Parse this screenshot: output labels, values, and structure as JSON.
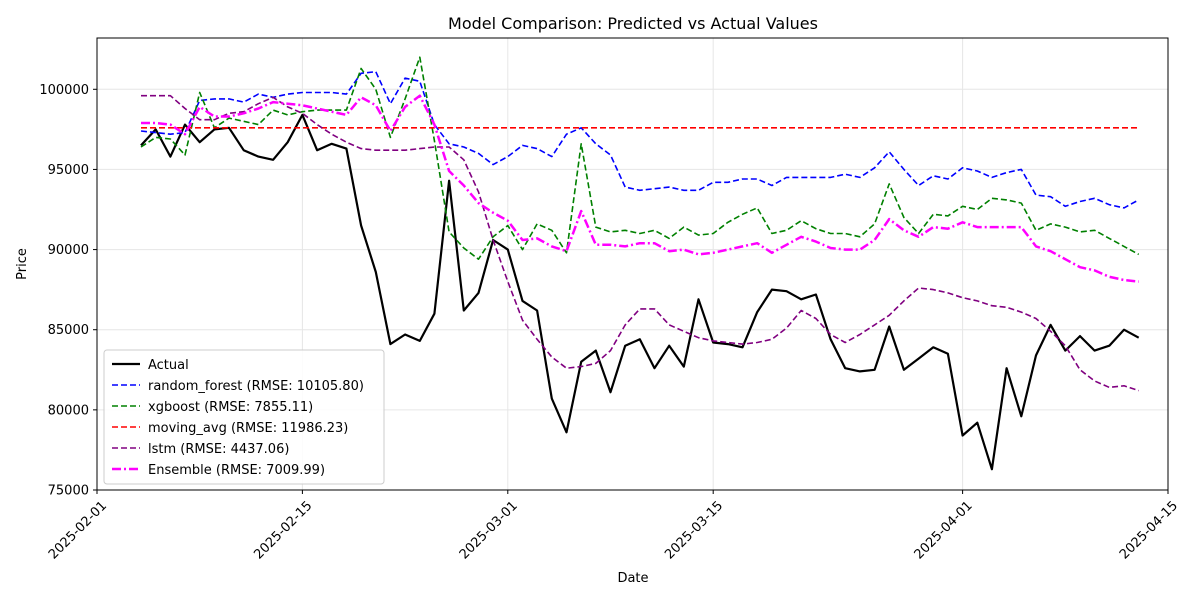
{
  "chart_data": {
    "type": "line",
    "title": "Model Comparison: Predicted vs Actual Values",
    "xlabel": "Date",
    "ylabel": "Price",
    "x_start": "2025-02-04",
    "x_step_days": 1,
    "xlim": [
      "2025-02-01",
      "2025-04-15"
    ],
    "ylim": [
      75000,
      103200
    ],
    "xticks": [
      "2025-02-01",
      "2025-02-15",
      "2025-03-01",
      "2025-03-15",
      "2025-04-01",
      "2025-04-15"
    ],
    "yticks": [
      75000,
      80000,
      85000,
      90000,
      95000,
      100000
    ],
    "grid": true,
    "legend_position": "lower-left",
    "series": [
      {
        "name": "Actual",
        "color": "#000000",
        "style": "solid",
        "values": [
          96500,
          97500,
          95800,
          97800,
          96700,
          97500,
          97600,
          96200,
          95800,
          95600,
          96700,
          98400,
          96200,
          96600,
          96300,
          91500,
          88600,
          84100,
          84700,
          84300,
          86000,
          94300,
          86200,
          87300,
          90600,
          90000,
          86800,
          86200,
          80700,
          78600,
          83000,
          83700,
          81100,
          84000,
          84400,
          82600,
          84000,
          82700,
          86900,
          84200,
          84100,
          83900,
          86100,
          87500,
          87400,
          86900,
          87200,
          84400,
          82600,
          82400,
          82500,
          85200,
          82500,
          83200,
          83900,
          83500,
          78400,
          79200,
          76300,
          82600,
          79600,
          83400,
          85300,
          83700,
          84600,
          83700,
          84000,
          85000,
          84500
        ]
      },
      {
        "name": "random_forest (RMSE: 10105.80)",
        "color": "#0000ff",
        "style": "dashed",
        "values": [
          97400,
          97300,
          97200,
          97300,
          99300,
          99400,
          99400,
          99200,
          99700,
          99500,
          99700,
          99800,
          99800,
          99800,
          99700,
          101000,
          101100,
          99100,
          100700,
          100500,
          97800,
          96600,
          96400,
          96000,
          95300,
          95800,
          96500,
          96300,
          95800,
          97200,
          97600,
          96600,
          95900,
          93900,
          93700,
          93800,
          93900,
          93700,
          93700,
          94200,
          94200,
          94400,
          94400,
          94000,
          94500,
          94500,
          94500,
          94500,
          94700,
          94500,
          95100,
          96100,
          95000,
          94000,
          94600,
          94400,
          95100,
          94900,
          94500,
          94800,
          95000,
          93400,
          93300,
          92700,
          93000,
          93200,
          92800,
          92600,
          93100
        ]
      },
      {
        "name": "xgboost (RMSE: 7855.11)",
        "color": "#008000",
        "style": "dashed",
        "values": [
          96400,
          97000,
          96900,
          95900,
          99800,
          97600,
          98200,
          98000,
          97800,
          98700,
          98400,
          98600,
          98700,
          98700,
          98700,
          101300,
          100000,
          97000,
          99400,
          102000,
          96800,
          91100,
          90100,
          89400,
          90800,
          91500,
          90000,
          91600,
          91200,
          89800,
          96600,
          91400,
          91100,
          91200,
          91000,
          91200,
          90700,
          91400,
          90900,
          91000,
          91700,
          92200,
          92600,
          91000,
          91200,
          91800,
          91300,
          91000,
          91000,
          90800,
          91600,
          94100,
          92000,
          91000,
          92200,
          92100,
          92700,
          92500,
          93200,
          93100,
          92900,
          91200,
          91600,
          91400,
          91100,
          91200,
          90700,
          90200,
          89700
        ]
      },
      {
        "name": "moving_avg (RMSE: 11986.23)",
        "color": "#ff0000",
        "style": "dashed",
        "values": [
          97600,
          97600,
          97600,
          97600,
          97600,
          97600,
          97600,
          97600,
          97600,
          97600,
          97600,
          97600,
          97600,
          97600,
          97600,
          97600,
          97600,
          97600,
          97600,
          97600,
          97600,
          97600,
          97600,
          97600,
          97600,
          97600,
          97600,
          97600,
          97600,
          97600,
          97600,
          97600,
          97600,
          97600,
          97600,
          97600,
          97600,
          97600,
          97600,
          97600,
          97600,
          97600,
          97600,
          97600,
          97600,
          97600,
          97600,
          97600,
          97600,
          97600,
          97600,
          97600,
          97600,
          97600,
          97600,
          97600,
          97600,
          97600,
          97600,
          97600,
          97600,
          97600,
          97600,
          97600,
          97600,
          97600,
          97600,
          97600,
          97600
        ]
      },
      {
        "name": "lstm (RMSE: 4437.06)",
        "color": "#800080",
        "style": "dashed",
        "values": [
          99600,
          99600,
          99600,
          98800,
          98100,
          98100,
          98500,
          98600,
          99100,
          99500,
          98900,
          98500,
          97800,
          97200,
          96700,
          96300,
          96200,
          96200,
          96200,
          96300,
          96400,
          96400,
          95600,
          93600,
          90600,
          88000,
          85600,
          84400,
          83300,
          82600,
          82700,
          82900,
          83700,
          85300,
          86300,
          86300,
          85300,
          84900,
          84500,
          84300,
          84200,
          84100,
          84200,
          84400,
          85100,
          86200,
          85700,
          84700,
          84200,
          84700,
          85300,
          85900,
          86800,
          87600,
          87500,
          87300,
          87000,
          86800,
          86500,
          86400,
          86100,
          85700,
          84900,
          84000,
          82500,
          81800,
          81400,
          81500,
          81200
        ]
      },
      {
        "name": "Ensemble (RMSE: 7009.99)",
        "color": "#ff00ff",
        "style": "dashdot",
        "values": [
          97900,
          97900,
          97800,
          97200,
          98900,
          98300,
          98300,
          98500,
          98800,
          99200,
          99100,
          99000,
          98800,
          98600,
          98400,
          99500,
          99000,
          97400,
          98900,
          99600,
          97800,
          94900,
          94000,
          92900,
          92300,
          91800,
          90600,
          90700,
          90200,
          89900,
          92400,
          90300,
          90300,
          90200,
          90400,
          90400,
          89900,
          90000,
          89700,
          89800,
          90000,
          90200,
          90400,
          89800,
          90300,
          90800,
          90500,
          90100,
          90000,
          90000,
          90600,
          91900,
          91200,
          90800,
          91400,
          91300,
          91700,
          91400,
          91400,
          91400,
          91400,
          90200,
          89900,
          89400,
          88900,
          88700,
          88300,
          88100,
          88000
        ]
      }
    ]
  }
}
